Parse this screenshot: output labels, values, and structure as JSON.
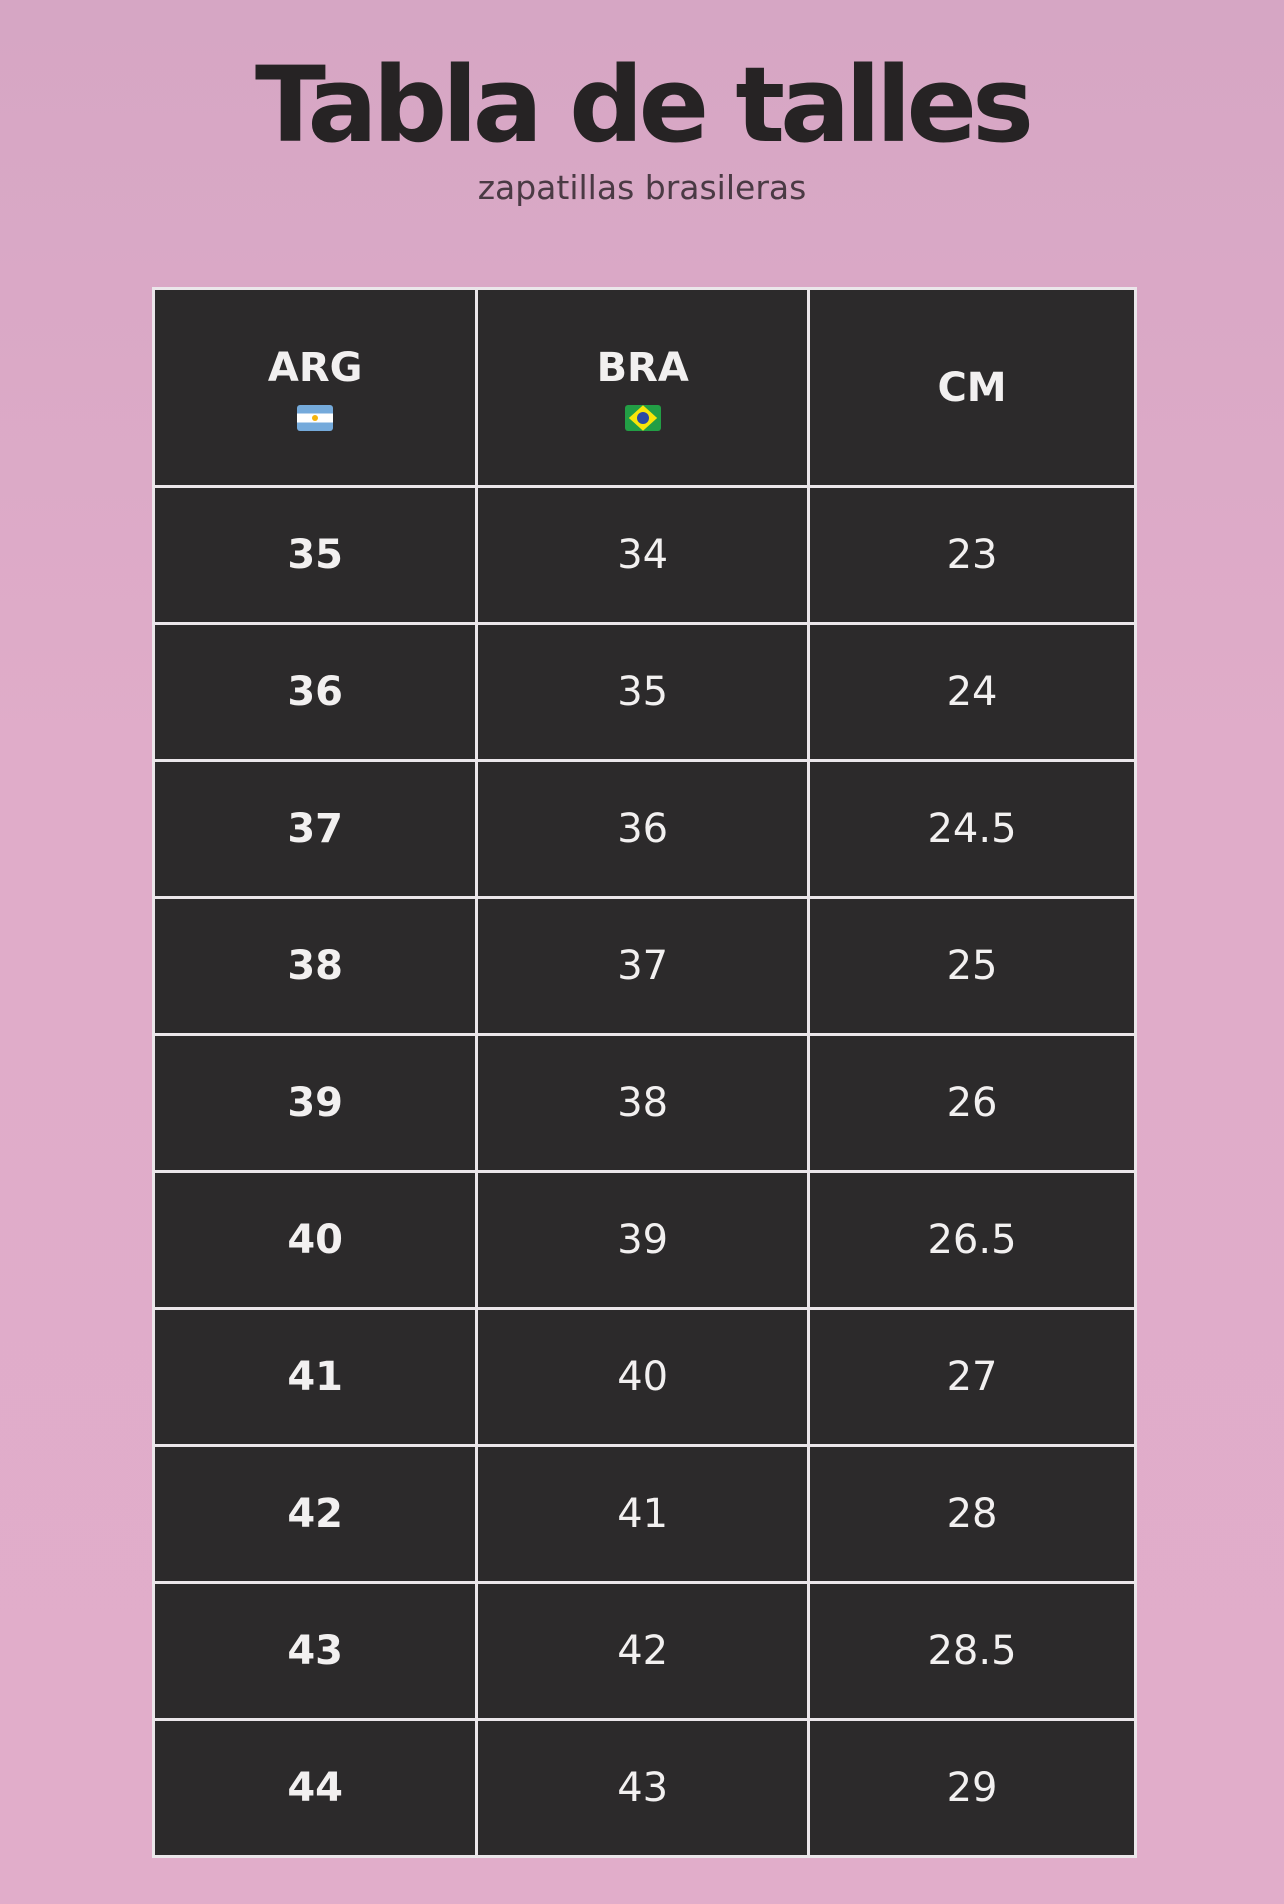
{
  "title": "Tabla de talles",
  "subtitle": "zapatillas brasileras",
  "table": {
    "headers": [
      {
        "label": "ARG",
        "icon": "argentina-flag-icon"
      },
      {
        "label": "BRA",
        "icon": "brazil-flag-icon"
      },
      {
        "label": "CM"
      }
    ],
    "rows": [
      [
        "35",
        "34",
        "23"
      ],
      [
        "36",
        "35",
        "24"
      ],
      [
        "37",
        "36",
        "24.5"
      ],
      [
        "38",
        "37",
        "25"
      ],
      [
        "39",
        "38",
        "26"
      ],
      [
        "40",
        "39",
        "26.5"
      ],
      [
        "41",
        "40",
        "27"
      ],
      [
        "42",
        "41",
        "28"
      ],
      [
        "43",
        "42",
        "28.5"
      ],
      [
        "44",
        "43",
        "29"
      ]
    ]
  },
  "colors": {
    "background": "#e0acc9",
    "cell": "#2c2a2b",
    "border": "#ebe6ea",
    "title": "#262324"
  }
}
